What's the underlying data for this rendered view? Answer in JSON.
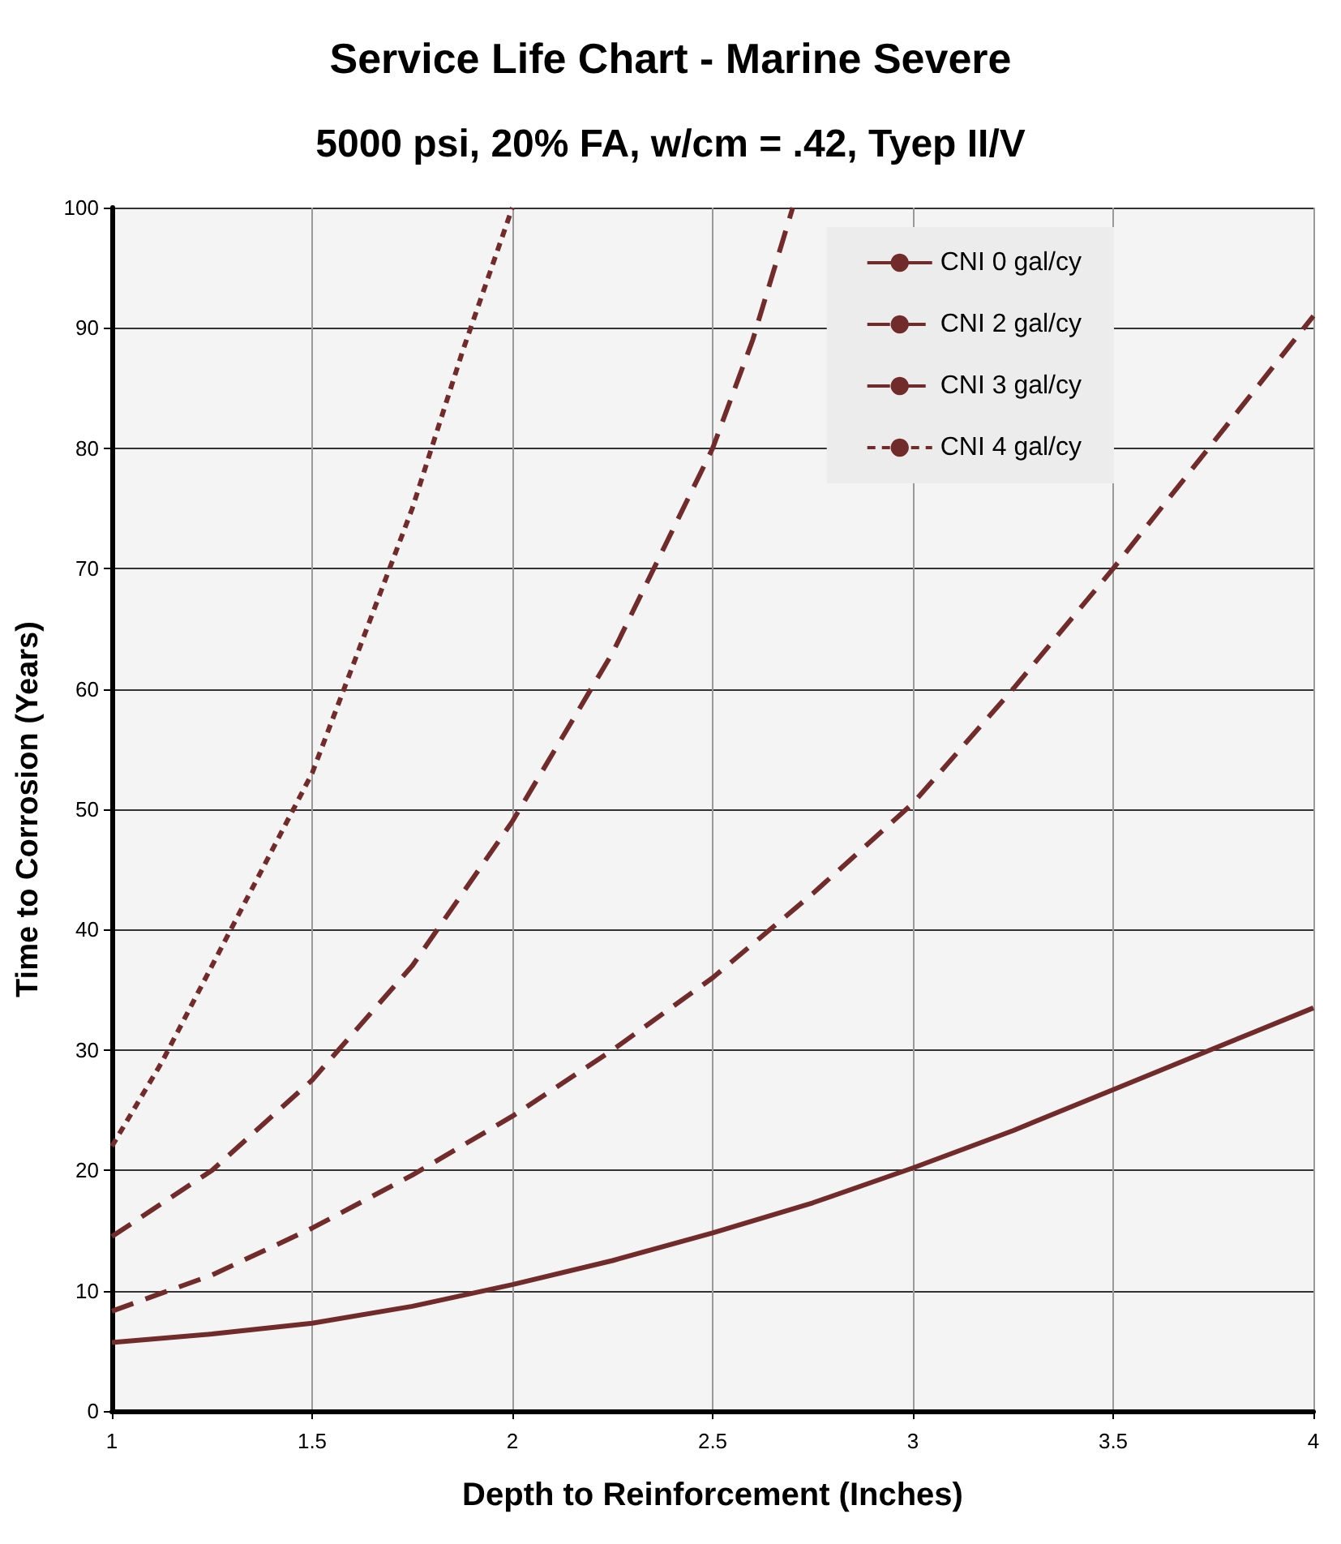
{
  "chart_data": {
    "type": "line",
    "title": "Service Life Chart - Marine Severe",
    "subtitle": "5000 psi, 20% FA, w/cm = .42, Tyep II/V",
    "xlabel": "Depth to Reinforcement (Inches)",
    "ylabel": "Time to Corrosion (Years)",
    "xlim": [
      1,
      4
    ],
    "xticks": [
      1,
      1.5,
      2,
      2.5,
      3,
      3.5,
      4
    ],
    "ylim": [
      0,
      100
    ],
    "yticks": [
      0,
      10,
      20,
      30,
      40,
      50,
      60,
      70,
      80,
      90,
      100
    ],
    "grid": true,
    "legend": "top right",
    "marker": "none",
    "series": [
      {
        "name": "CNI 0 gal/cy",
        "color": "#722b2b",
        "line_style": "solid",
        "x": [
          1,
          1.25,
          1.5,
          1.75,
          2,
          2.25,
          2.5,
          2.75,
          3,
          3.25,
          3.5,
          3.75,
          4
        ],
        "values": [
          5.7,
          6.4,
          7.3,
          8.7,
          10.5,
          12.5,
          14.8,
          17.3,
          20.2,
          23.3,
          26.7,
          30.1,
          33.5
        ]
      },
      {
        "name": "CNI 2 gal/cy",
        "color": "#722b2b",
        "line_style": "dashed",
        "x": [
          1,
          1.25,
          1.5,
          1.75,
          2,
          2.25,
          2.5,
          2.75,
          3,
          3.25,
          3.5,
          3.75,
          4
        ],
        "values": [
          8.3,
          11.3,
          15.2,
          19.6,
          24.5,
          30,
          36,
          43,
          50.5,
          60,
          70,
          80.5,
          91
        ]
      },
      {
        "name": "CNI 3 gal/cy",
        "color": "#722b2b",
        "line_style": "dashed",
        "x": [
          1,
          1.25,
          1.5,
          1.75,
          2,
          2.25,
          2.5,
          2.6,
          2.7
        ],
        "values": [
          14.5,
          20,
          27.5,
          37,
          49,
          63,
          80,
          89,
          100
        ]
      },
      {
        "name": "CNI 4 gal/cy",
        "color": "#722b2b",
        "line_style": "dotted",
        "x": [
          1,
          1.125,
          1.25,
          1.5,
          1.75,
          1.875,
          2
        ],
        "values": [
          22,
          29,
          37,
          53,
          75,
          88,
          100
        ]
      }
    ]
  }
}
